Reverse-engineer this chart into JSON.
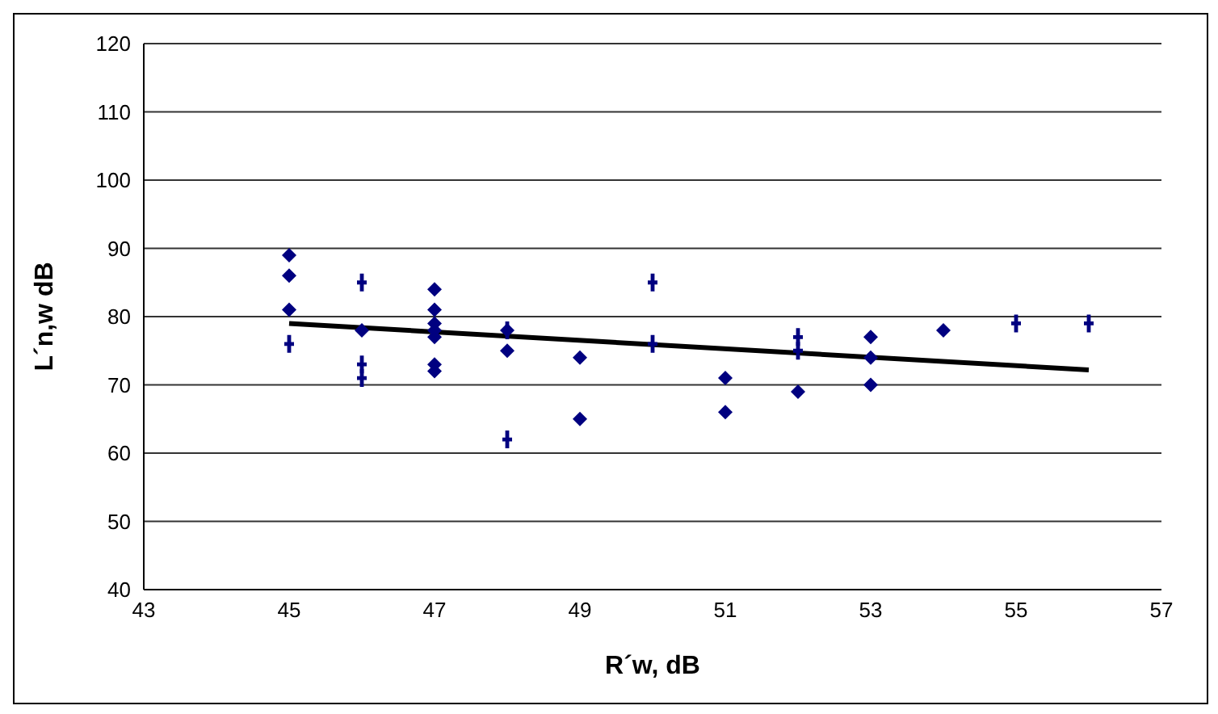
{
  "chart_data": {
    "type": "scatter",
    "xlabel": "R´w, dB",
    "ylabel": "L´n,w dB",
    "xlim": [
      43,
      57
    ],
    "xticks": [
      43,
      45,
      47,
      49,
      51,
      53,
      55,
      57
    ],
    "ylim": [
      40,
      120
    ],
    "yticks": [
      40,
      50,
      60,
      70,
      80,
      90,
      100,
      110,
      120
    ],
    "grid": "y",
    "legend": false,
    "series": [
      {
        "color": "#000080",
        "marker": "diamond",
        "x": [
          45,
          45,
          45,
          46,
          47,
          47,
          47,
          47,
          47,
          47,
          47,
          48,
          48,
          49,
          49,
          51,
          51,
          52,
          53,
          53,
          53,
          54
        ],
        "values": [
          89,
          86,
          81,
          78,
          84,
          81,
          79,
          78,
          77,
          73,
          72,
          78,
          75,
          74,
          65,
          71,
          66,
          69,
          77,
          74,
          70,
          78
        ]
      },
      {
        "color": "#000080",
        "marker": "cross",
        "x": [
          45,
          46,
          46,
          46,
          48,
          48,
          50,
          50,
          52,
          52,
          55,
          56
        ],
        "values": [
          76,
          85,
          73,
          71,
          78,
          62,
          85,
          76,
          77,
          75,
          79,
          79
        ]
      },
      {
        "type": "line",
        "color": "#000000",
        "x": [
          45,
          56
        ],
        "values": [
          79,
          72.2
        ]
      }
    ]
  }
}
